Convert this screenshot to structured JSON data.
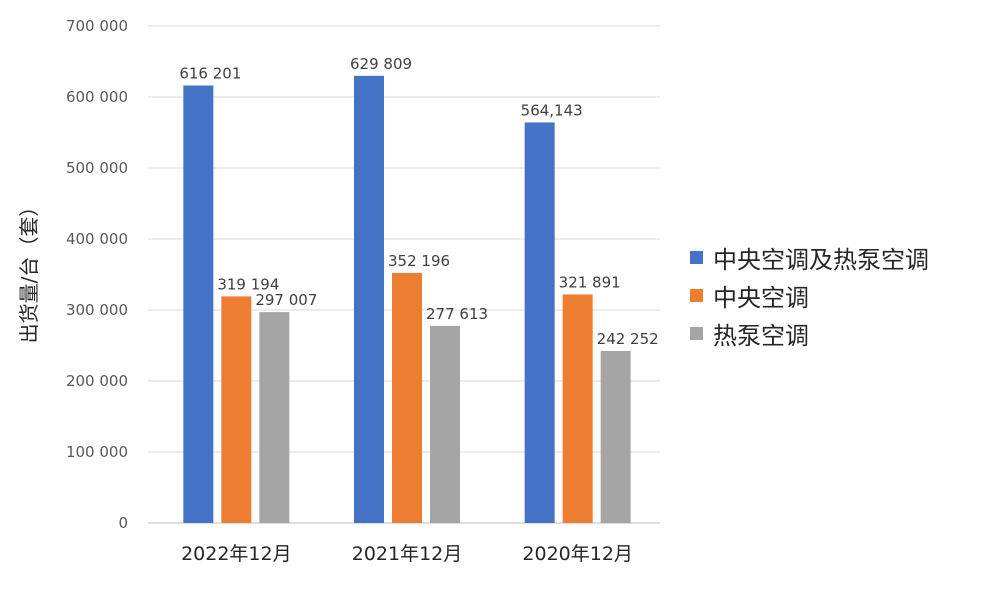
{
  "chart_data": {
    "type": "bar",
    "categories": [
      "2022年12月",
      "2021年12月",
      "2020年12月"
    ],
    "series": [
      {
        "name": "中央空调及热泵空调",
        "color": "#4472C4",
        "values": [
          616201,
          629809,
          564143
        ],
        "labels": [
          "616 201",
          "629 809",
          "564,143"
        ]
      },
      {
        "name": "中央空调",
        "color": "#ED7D31",
        "values": [
          319194,
          352196,
          321891
        ],
        "labels": [
          "319 194",
          "352 196",
          "321 891"
        ]
      },
      {
        "name": "热泵空调",
        "color": "#A5A5A5",
        "values": [
          297007,
          277613,
          242252
        ],
        "labels": [
          "297 007",
          "277 613",
          "242 252"
        ]
      }
    ],
    "yticks": [
      0,
      100000,
      200000,
      300000,
      400000,
      500000,
      600000,
      700000
    ],
    "ytick_labels": [
      "0",
      "100 000",
      "200 000",
      "300 000",
      "400 000",
      "500 000",
      "600 000",
      "700 000"
    ],
    "ylim": [
      0,
      700000
    ],
    "ylabel": "出货量/台（套）",
    "xlabel": "",
    "grid": true,
    "legend_position": "right"
  }
}
